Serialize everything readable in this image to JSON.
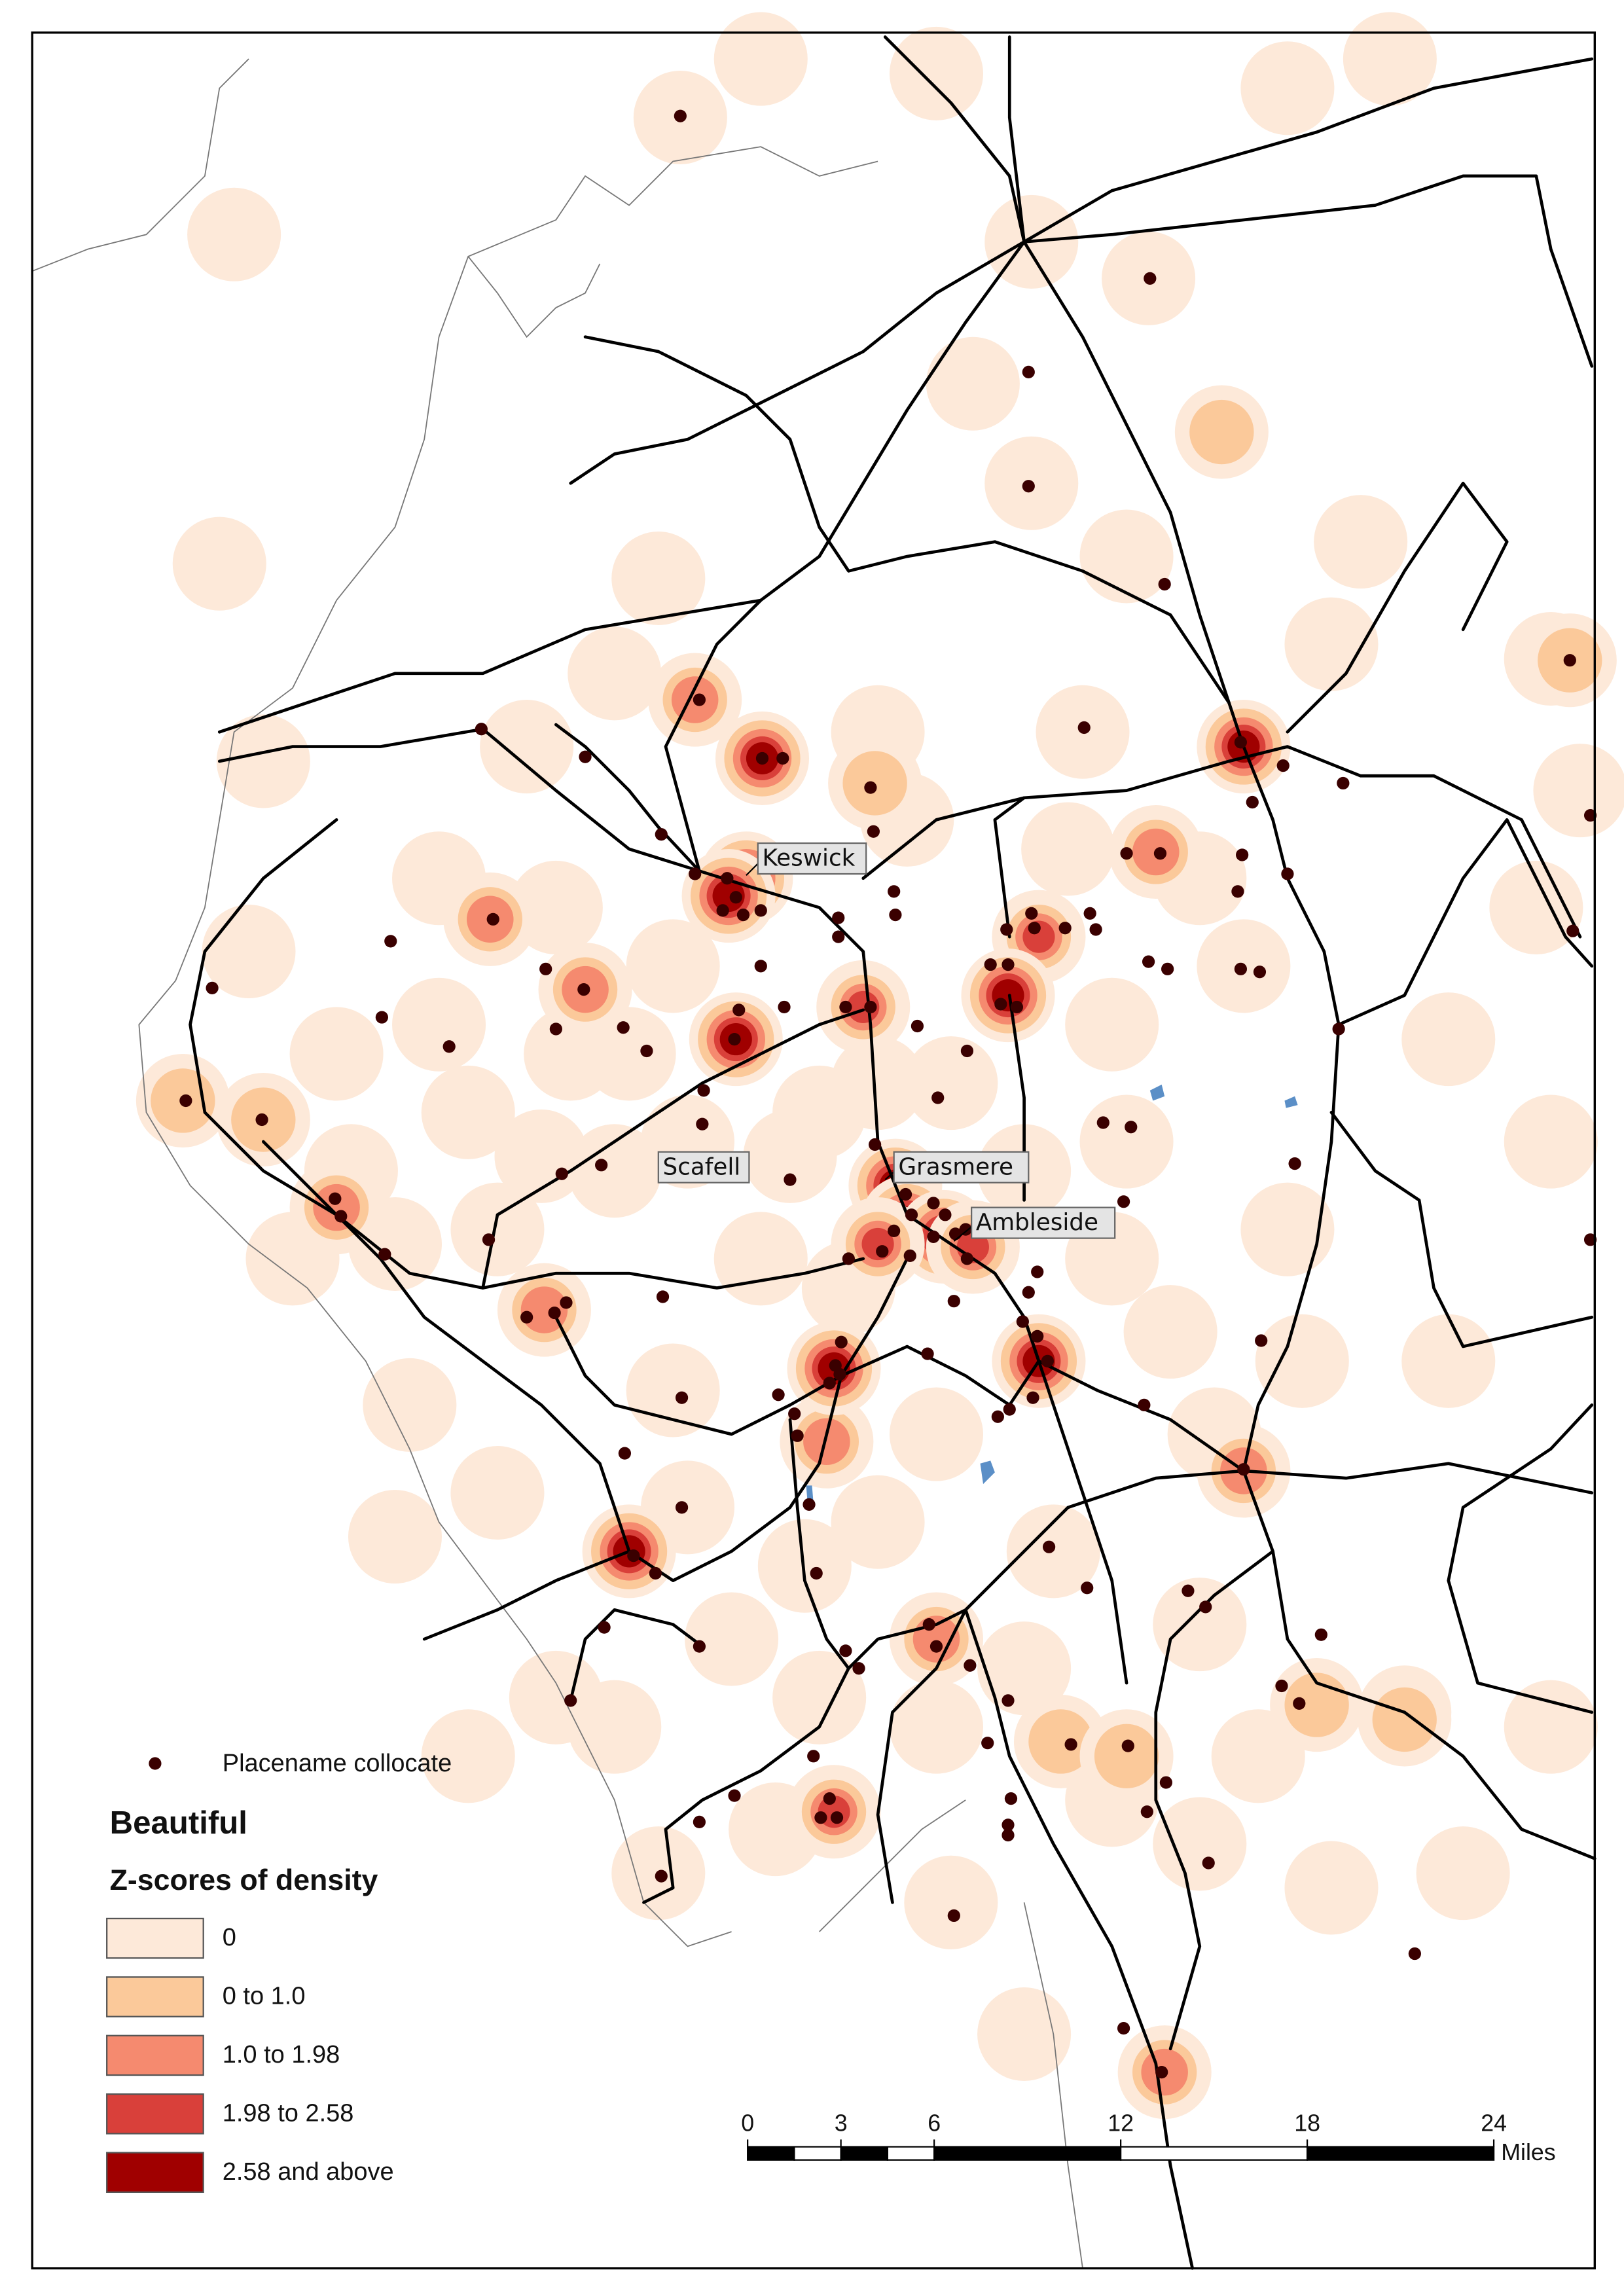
{
  "map": {
    "place_labels": [
      "Keswick",
      "Scafell",
      "Grasmere",
      "Ambleside"
    ],
    "legend": {
      "points_label": "Placename collocate",
      "title": "Beautiful",
      "subtitle": "Z-scores of density",
      "classes": [
        {
          "label": "0",
          "color": "#fde9d9"
        },
        {
          "label": "0 to 1.0",
          "color": "#fbc99a"
        },
        {
          "label": "1.0 to 1.98",
          "color": "#f58a6f"
        },
        {
          "label": "1.98 to 2.58",
          "color": "#d9403a"
        },
        {
          "label": "2.58 and above",
          "color": "#a00000"
        }
      ]
    },
    "scale_bar": {
      "ticks": [
        0,
        3,
        6,
        12,
        18,
        24
      ],
      "unit": "Miles"
    }
  }
}
